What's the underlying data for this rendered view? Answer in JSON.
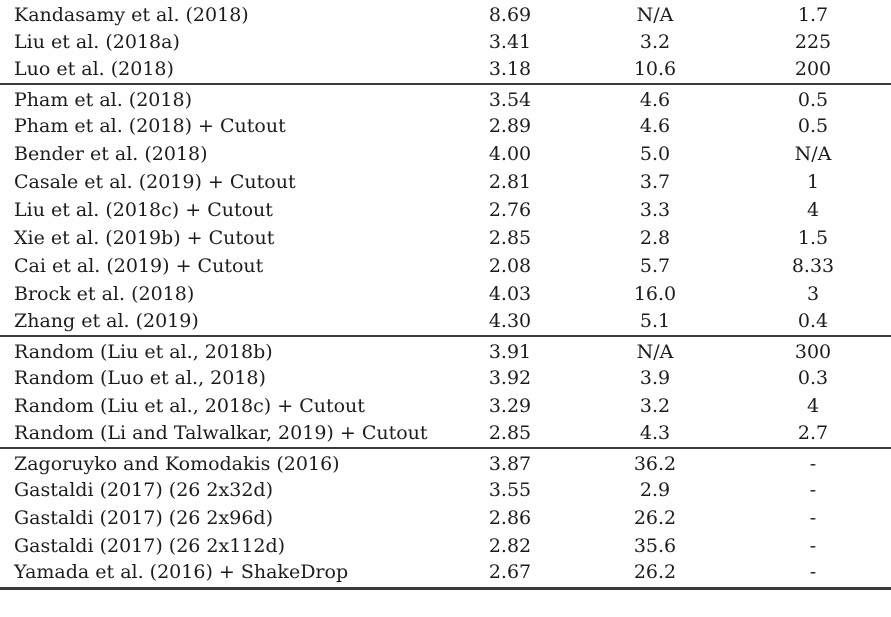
{
  "colors": {
    "text": "#1c1c1c",
    "rule": "#3a3a3a",
    "background": "#fefefe"
  },
  "table": {
    "groups": [
      {
        "rows": [
          {
            "method": "Kandasamy et al. (2018)",
            "values": [
              "8.69",
              "N/A",
              "1.7"
            ]
          },
          {
            "method": "Liu et al. (2018a)",
            "values": [
              "3.41",
              "3.2",
              "225"
            ]
          },
          {
            "method": "Luo et al. (2018)",
            "values": [
              "3.18",
              "10.6",
              "200"
            ]
          }
        ]
      },
      {
        "rows": [
          {
            "method": "Pham et al. (2018)",
            "values": [
              "3.54",
              "4.6",
              "0.5"
            ]
          },
          {
            "method": "Pham et al. (2018) + Cutout",
            "values": [
              "2.89",
              "4.6",
              "0.5"
            ]
          },
          {
            "method": "Bender et al. (2018)",
            "values": [
              "4.00",
              "5.0",
              "N/A"
            ]
          },
          {
            "method": "Casale et al. (2019) + Cutout",
            "values": [
              "2.81",
              "3.7",
              "1"
            ]
          },
          {
            "method": "Liu et al. (2018c) + Cutout",
            "values": [
              "2.76",
              "3.3",
              "4"
            ]
          },
          {
            "method": "Xie et al. (2019b) + Cutout",
            "values": [
              "2.85",
              "2.8",
              "1.5"
            ]
          },
          {
            "method": "Cai et al. (2019) + Cutout",
            "values": [
              "2.08",
              "5.7",
              "8.33"
            ]
          },
          {
            "method": "Brock et al. (2018)",
            "values": [
              "4.03",
              "16.0",
              "3"
            ]
          },
          {
            "method": "Zhang et al. (2019)",
            "values": [
              "4.30",
              "5.1",
              "0.4"
            ]
          }
        ]
      },
      {
        "rows": [
          {
            "method": "Random (Liu et al., 2018b)",
            "values": [
              "3.91",
              "N/A",
              "300"
            ]
          },
          {
            "method": "Random (Luo et al., 2018)",
            "values": [
              "3.92",
              "3.9",
              "0.3"
            ]
          },
          {
            "method": "Random (Liu et al., 2018c) + Cutout",
            "values": [
              "3.29",
              "3.2",
              "4"
            ]
          },
          {
            "method": "Random (Li and Talwalkar, 2019) + Cutout",
            "values": [
              "2.85",
              "4.3",
              "2.7"
            ]
          }
        ]
      },
      {
        "rows": [
          {
            "method": "Zagoruyko and Komodakis (2016)",
            "values": [
              "3.87",
              "36.2",
              "-"
            ]
          },
          {
            "method": "Gastaldi (2017) (26 2x32d)",
            "values": [
              "3.55",
              "2.9",
              "-"
            ]
          },
          {
            "method": "Gastaldi (2017) (26 2x96d)",
            "values": [
              "2.86",
              "26.2",
              "-"
            ]
          },
          {
            "method": "Gastaldi (2017) (26 2x112d)",
            "values": [
              "2.82",
              "35.6",
              "-"
            ]
          },
          {
            "method": "Yamada et al. (2016) + ShakeDrop",
            "values": [
              "2.67",
              "26.2",
              "-"
            ]
          }
        ]
      }
    ]
  }
}
